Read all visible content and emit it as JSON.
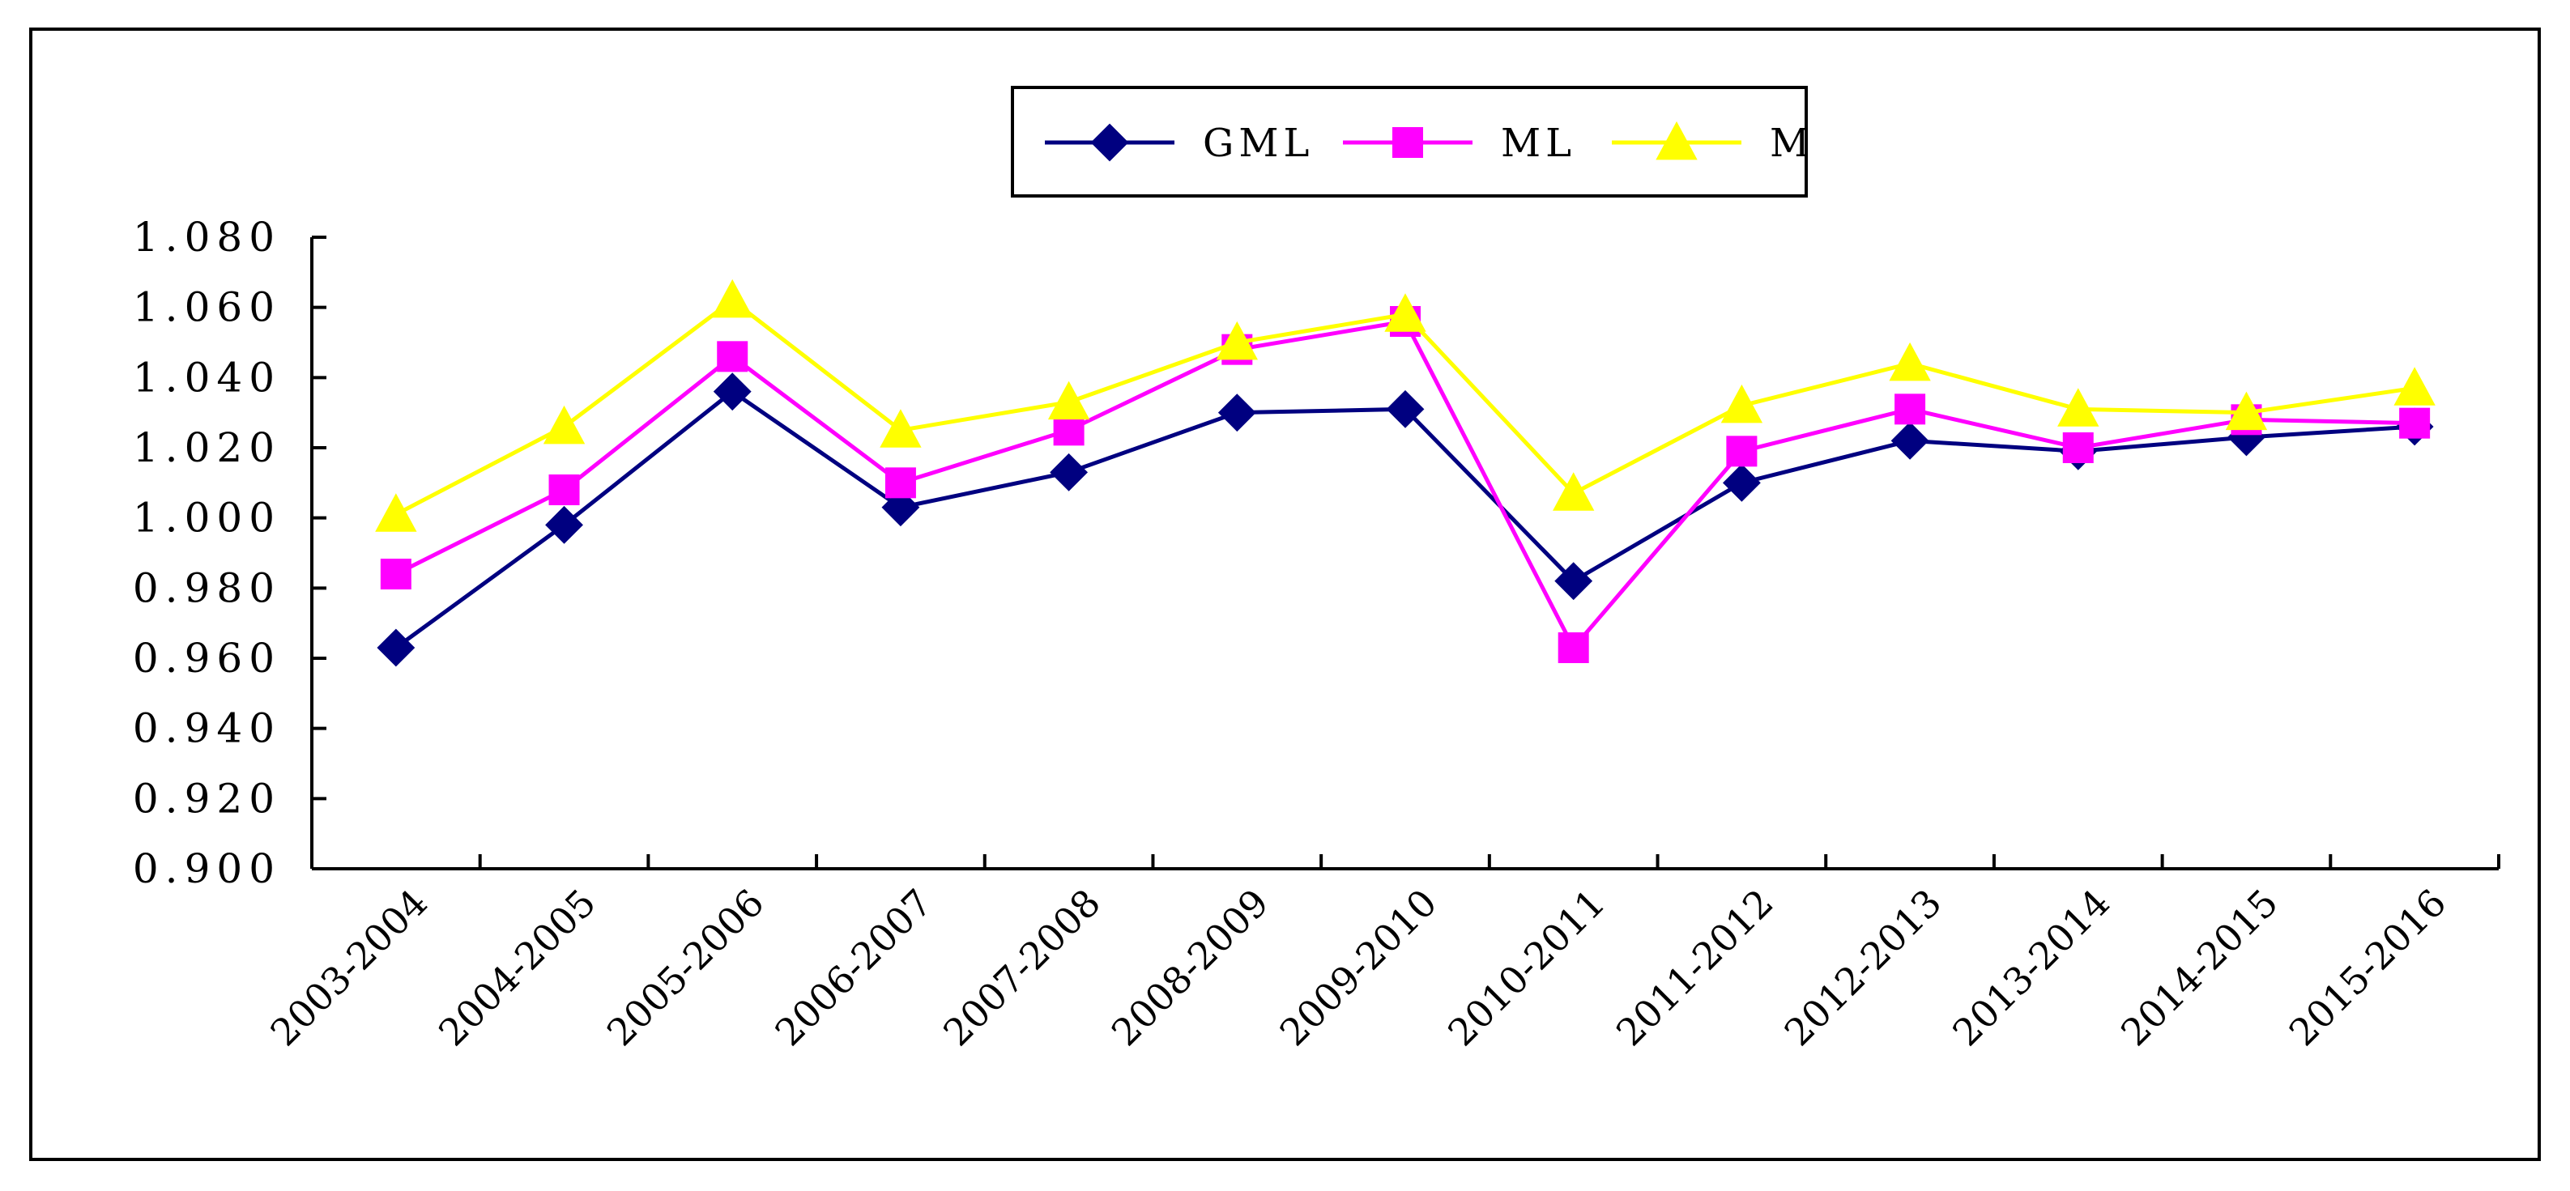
{
  "chart_data": {
    "type": "line",
    "title": "",
    "xlabel": "",
    "ylabel": "",
    "ylim": [
      0.9,
      1.08
    ],
    "yticks": [
      "0.900",
      "0.920",
      "0.940",
      "0.960",
      "0.980",
      "1.000",
      "1.020",
      "1.040",
      "1.060",
      "1.080"
    ],
    "ytick_values": [
      0.9,
      0.92,
      0.94,
      0.96,
      0.98,
      1.0,
      1.02,
      1.04,
      1.06,
      1.08
    ],
    "categories": [
      "2003-2004",
      "2004-2005",
      "2005-2006",
      "2006-2007",
      "2007-2008",
      "2008-2009",
      "2009-2010",
      "2010-2011",
      "2011-2012",
      "2012-2013",
      "2013-2014",
      "2014-2015",
      "2015-2016"
    ],
    "grid": false,
    "legend_position": "top-center",
    "series": [
      {
        "name": "GML",
        "color": "#000080",
        "marker": "diamond",
        "values": [
          0.963,
          0.998,
          1.036,
          1.003,
          1.013,
          1.03,
          1.031,
          0.982,
          1.01,
          1.022,
          1.019,
          1.023,
          1.026
        ]
      },
      {
        "name": "ML",
        "color": "#FF00FF",
        "marker": "square",
        "values": [
          0.984,
          1.008,
          1.046,
          1.01,
          1.025,
          1.048,
          1.056,
          0.963,
          1.019,
          1.031,
          1.02,
          1.028,
          1.027
        ]
      },
      {
        "name": "M",
        "color": "#FFFF00",
        "marker": "triangle",
        "values": [
          1.001,
          1.026,
          1.062,
          1.025,
          1.033,
          1.05,
          1.058,
          1.007,
          1.032,
          1.044,
          1.031,
          1.03,
          1.037
        ]
      }
    ]
  }
}
